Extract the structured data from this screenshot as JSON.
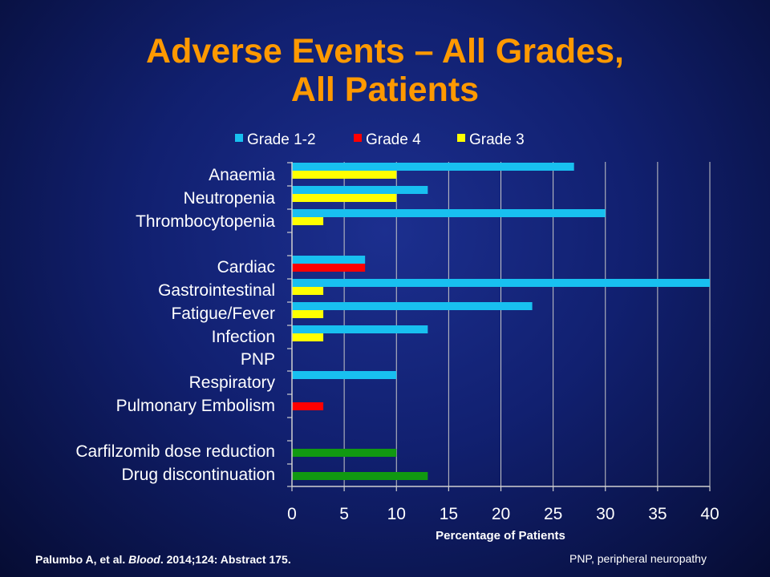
{
  "title": {
    "line1": "Adverse Events – All Grades,",
    "line2": "All Patients"
  },
  "chart_data": {
    "type": "bar",
    "orientation": "horizontal",
    "categories": [
      "Anaemia",
      "Neutropenia",
      "Thrombocytopenia",
      "Cardiac",
      "Gastrointestinal",
      "Fatigue/Fever",
      "Infection",
      "PNP",
      "Respiratory",
      "Pulmonary Embolism",
      "Carfilzomib dose reduction",
      "Drug discontinuation"
    ],
    "series": [
      {
        "name": "Grade 1-2",
        "color": "#18c0f0",
        "values": [
          27,
          13,
          30,
          7,
          40,
          23,
          13,
          null,
          10,
          null,
          null,
          null
        ]
      },
      {
        "name": "Grade 4",
        "color": "#ff0000",
        "values": [
          null,
          null,
          null,
          7,
          null,
          null,
          null,
          null,
          null,
          3,
          null,
          null
        ]
      },
      {
        "name": "Grade 3",
        "color": "#ffff00",
        "values": [
          10,
          10,
          3,
          null,
          3,
          3,
          3,
          null,
          null,
          null,
          null,
          null
        ]
      },
      {
        "name": "",
        "color": "#119911",
        "values": [
          null,
          null,
          null,
          null,
          null,
          null,
          null,
          null,
          null,
          null,
          10,
          13
        ]
      }
    ],
    "xlabel": "Percentage of Patients",
    "xlim": [
      0,
      40
    ],
    "xticks": [
      0,
      5,
      10,
      15,
      20,
      25,
      30,
      35,
      40
    ],
    "legend_position": "top",
    "grid": true
  },
  "footnote": {
    "authors": "Palumbo A,  et al. ",
    "journal": "Blood",
    "details": ". 2014;124: Abstract  175."
  },
  "abbreviation": "PNP, peripheral neuropathy"
}
